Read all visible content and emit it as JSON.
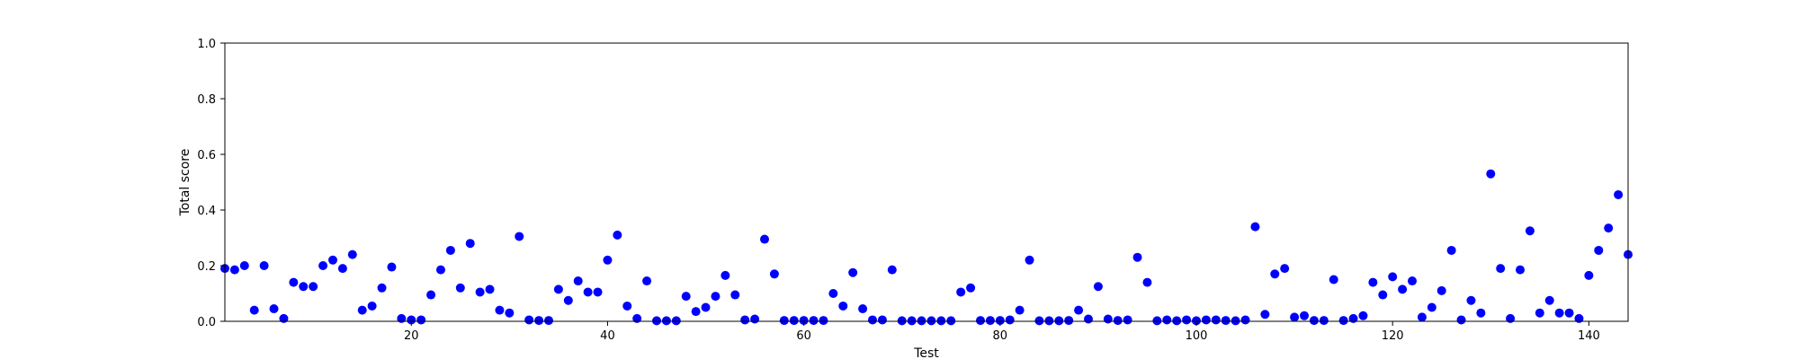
{
  "chart_data": {
    "type": "scatter",
    "title": "",
    "xlabel": "Test",
    "ylabel": "Total score",
    "xlim": [
      1,
      144
    ],
    "ylim": [
      0,
      1
    ],
    "x_ticks": [
      20,
      40,
      60,
      80,
      100,
      120,
      140
    ],
    "y_ticks": [
      0.0,
      0.2,
      0.4,
      0.6,
      0.8,
      1.0
    ],
    "y_tick_labels": [
      "0.0",
      "0.2",
      "0.4",
      "0.6",
      "0.8",
      "1.0"
    ],
    "grid": false,
    "marker_color": "#0000ff",
    "series": [
      {
        "x": [
          1,
          2,
          3,
          4,
          5,
          6,
          7,
          8,
          9,
          10,
          11,
          12,
          13,
          14,
          15,
          16,
          17,
          18,
          19,
          20,
          21,
          22,
          23,
          24,
          25,
          26,
          27,
          28,
          29,
          30,
          31,
          32,
          33,
          34,
          35,
          36,
          37,
          38,
          39,
          40,
          41,
          42,
          43,
          44,
          45,
          46,
          47,
          48,
          49,
          50,
          51,
          52,
          53,
          54,
          55,
          56,
          57,
          58,
          59,
          60,
          61,
          62,
          63,
          64,
          65,
          66,
          67,
          68,
          69,
          70,
          71,
          72,
          73,
          74,
          75,
          76,
          77,
          78,
          79,
          80,
          81,
          82,
          83,
          84,
          85,
          86,
          87,
          88,
          89,
          90,
          91,
          92,
          93,
          94,
          95,
          96,
          97,
          98,
          99,
          100,
          101,
          102,
          103,
          104,
          105,
          106,
          107,
          108,
          109,
          110,
          111,
          112,
          113,
          114,
          115,
          116,
          117,
          118,
          119,
          120,
          121,
          122,
          123,
          124,
          125,
          126,
          127,
          128,
          129,
          130,
          131,
          132,
          133,
          134,
          135,
          136,
          137,
          138,
          139,
          140,
          141,
          142,
          143,
          144
        ],
        "y": [
          0.19,
          0.185,
          0.2,
          0.04,
          0.2,
          0.045,
          0.01,
          0.14,
          0.125,
          0.125,
          0.2,
          0.22,
          0.19,
          0.24,
          0.04,
          0.055,
          0.12,
          0.195,
          0.01,
          0.005,
          0.005,
          0.095,
          0.185,
          0.255,
          0.12,
          0.28,
          0.105,
          0.115,
          0.04,
          0.03,
          0.305,
          0.005,
          0.003,
          0.003,
          0.115,
          0.075,
          0.145,
          0.105,
          0.105,
          0.22,
          0.31,
          0.055,
          0.01,
          0.145,
          0.002,
          0.002,
          0.002,
          0.09,
          0.035,
          0.05,
          0.09,
          0.165,
          0.095,
          0.005,
          0.008,
          0.295,
          0.17,
          0.003,
          0.003,
          0.003,
          0.003,
          0.003,
          0.1,
          0.055,
          0.175,
          0.045,
          0.005,
          0.005,
          0.185,
          0.002,
          0.002,
          0.002,
          0.002,
          0.002,
          0.002,
          0.105,
          0.12,
          0.003,
          0.003,
          0.003,
          0.005,
          0.04,
          0.22,
          0.002,
          0.002,
          0.002,
          0.003,
          0.04,
          0.008,
          0.125,
          0.008,
          0.003,
          0.005,
          0.23,
          0.14,
          0.002,
          0.005,
          0.002,
          0.005,
          0.002,
          0.005,
          0.005,
          0.003,
          0.002,
          0.005,
          0.34,
          0.025,
          0.17,
          0.19,
          0.015,
          0.02,
          0.003,
          0.003,
          0.15,
          0.003,
          0.01,
          0.02,
          0.14,
          0.095,
          0.16,
          0.115,
          0.145,
          0.015,
          0.05,
          0.11,
          0.255,
          0.005,
          0.075,
          0.03,
          0.53,
          0.19,
          0.01,
          0.185,
          0.325,
          0.03,
          0.075,
          0.03,
          0.03,
          0.01,
          0.165,
          0.255,
          0.335,
          0.455,
          0.24
        ]
      }
    ]
  }
}
